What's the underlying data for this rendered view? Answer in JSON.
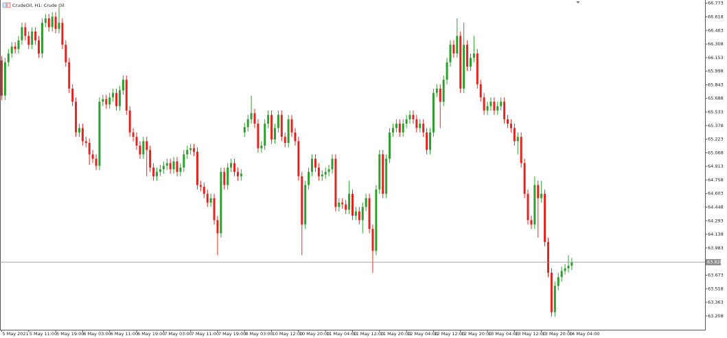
{
  "chart_data": {
    "type": "candlestick",
    "title": "CrudeOil, H1:  Crude Oil",
    "up_color": "#2e9e2e",
    "down_color": "#e3241e",
    "grid": false,
    "xlim": [
      -0.5,
      208.5
    ],
    "ylim": [
      63.05,
      66.81
    ],
    "xticks": [
      {
        "value": 0,
        "label": "5 May 2021"
      },
      {
        "value": 8,
        "label": "5 May 11:00"
      },
      {
        "value": 16,
        "label": "5 May 19:00"
      },
      {
        "value": 24,
        "label": "6 May 03:00"
      },
      {
        "value": 32,
        "label": "6 May 11:00"
      },
      {
        "value": 40,
        "label": "6 May 19:00"
      },
      {
        "value": 48,
        "label": "7 May 03:00"
      },
      {
        "value": 56,
        "label": "7 May 11:00"
      },
      {
        "value": 64,
        "label": "7 May 19:00"
      },
      {
        "value": 72,
        "label": "8 May 03:00"
      },
      {
        "value": 80,
        "label": "10 May 12:00"
      },
      {
        "value": 88,
        "label": "10 May 20:00"
      },
      {
        "value": 96,
        "label": "11 May 04:00"
      },
      {
        "value": 104,
        "label": "11 May 12:00"
      },
      {
        "value": 112,
        "label": "11 May 20:00"
      },
      {
        "value": 120,
        "label": "12 May 04:00"
      },
      {
        "value": 128,
        "label": "12 May 12:00"
      },
      {
        "value": 136,
        "label": "12 May 20:00"
      },
      {
        "value": 144,
        "label": "13 May 04:00"
      },
      {
        "value": 152,
        "label": "13 May 12:00"
      },
      {
        "value": 160,
        "label": "13 May 20:00"
      },
      {
        "value": 168,
        "label": "14 May 04:00"
      }
    ],
    "yticks": [
      66.773,
      66.618,
      66.463,
      66.308,
      66.153,
      65.998,
      65.843,
      65.688,
      65.533,
      65.378,
      65.223,
      65.068,
      64.913,
      64.758,
      64.603,
      64.448,
      64.293,
      64.138,
      63.983,
      63.673,
      63.518,
      63.363,
      63.208
    ],
    "price_line": {
      "value": 63.82,
      "label": "63.820"
    },
    "open": [
      66.12,
      65.72,
      66.1,
      66.2,
      66.28,
      66.25,
      66.35,
      66.5,
      66.4,
      66.3,
      66.45,
      66.35,
      66.2,
      66.55,
      66.6,
      66.5,
      66.62,
      66.48,
      66.55,
      66.3,
      66.1,
      65.8,
      65.65,
      65.3,
      65.35,
      65.2,
      65.18,
      65.05,
      65.0,
      64.92,
      65.65,
      65.68,
      65.62,
      65.7,
      65.75,
      65.6,
      65.78,
      65.9,
      65.55,
      65.3,
      65.25,
      65.15,
      65.05,
      65.2,
      65.1,
      64.9,
      64.8,
      64.85,
      64.88,
      64.92,
      64.95,
      64.88,
      64.97,
      64.85,
      64.9,
      65.05,
      65.1,
      65.12,
      65.08,
      64.7,
      64.68,
      64.6,
      64.5,
      64.55,
      64.3,
      64.15,
      64.85,
      64.7,
      64.9,
      64.95,
      64.85,
      64.8,
      65.3,
      65.36,
      65.45,
      65.52,
      65.4,
      65.12,
      65.15,
      65.4,
      65.5,
      65.22,
      65.35,
      65.5,
      65.25,
      65.18,
      65.45,
      65.3,
      65.2,
      64.8,
      64.25,
      64.7,
      64.85,
      65.0,
      64.9,
      64.8,
      64.82,
      64.85,
      64.88,
      65.0,
      64.45,
      64.5,
      64.48,
      64.42,
      64.6,
      64.35,
      64.4,
      64.3,
      64.45,
      64.55,
      64.2,
      63.95,
      64.65,
      65.05,
      64.6,
      65.0,
      65.3,
      65.35,
      65.4,
      65.3,
      65.4,
      65.45,
      65.5,
      65.45,
      65.35,
      65.4,
      65.3,
      65.1,
      65.3,
      65.75,
      65.8,
      65.65,
      65.9,
      66.1,
      66.3,
      66.2,
      66.4,
      65.8,
      66.3,
      66.05,
      66.15,
      66.2,
      65.85,
      65.7,
      65.55,
      65.6,
      65.65,
      65.55,
      65.6,
      65.65,
      65.45,
      65.4,
      65.35,
      65.2,
      65.25,
      64.95,
      64.6,
      64.3,
      64.25,
      64.7,
      64.55,
      64.6,
      64.05,
      63.7,
      63.25,
      63.55,
      63.65,
      63.72,
      63.75,
      63.78
    ],
    "high": [
      66.17,
      66.15,
      66.25,
      66.33,
      66.33,
      66.4,
      66.55,
      66.55,
      66.45,
      66.5,
      66.5,
      66.4,
      66.6,
      66.65,
      66.65,
      66.67,
      66.67,
      66.73,
      66.6,
      66.35,
      66.15,
      65.85,
      65.7,
      65.4,
      65.4,
      65.25,
      65.23,
      65.1,
      65.05,
      65.7,
      65.73,
      65.73,
      65.75,
      65.8,
      65.8,
      65.83,
      65.95,
      65.95,
      65.6,
      65.35,
      65.3,
      65.2,
      65.25,
      65.25,
      65.15,
      64.95,
      64.9,
      64.93,
      64.97,
      65.0,
      65.0,
      65.02,
      65.02,
      64.95,
      65.1,
      65.15,
      65.17,
      65.17,
      65.13,
      64.75,
      64.73,
      64.65,
      64.6,
      64.6,
      64.35,
      64.9,
      64.9,
      64.95,
      65.0,
      65.0,
      64.9,
      64.88,
      65.41,
      65.5,
      65.72,
      65.57,
      65.45,
      65.2,
      65.45,
      65.55,
      65.55,
      65.4,
      65.55,
      65.55,
      65.3,
      65.5,
      65.5,
      65.35,
      65.25,
      64.85,
      64.75,
      64.9,
      65.05,
      65.05,
      64.95,
      64.87,
      64.9,
      64.93,
      65.05,
      65.05,
      64.55,
      64.55,
      64.53,
      64.75,
      64.65,
      64.45,
      64.45,
      64.5,
      64.6,
      64.6,
      64.25,
      64.7,
      65.1,
      65.1,
      65.05,
      65.35,
      65.4,
      65.45,
      65.45,
      65.45,
      65.5,
      65.55,
      65.55,
      65.5,
      65.45,
      65.45,
      65.35,
      65.35,
      65.8,
      65.85,
      65.85,
      65.95,
      66.15,
      66.35,
      66.35,
      66.6,
      66.45,
      66.55,
      66.35,
      66.2,
      66.4,
      66.25,
      65.9,
      65.75,
      65.65,
      65.7,
      65.7,
      65.65,
      65.7,
      65.7,
      65.5,
      65.45,
      65.4,
      65.3,
      65.3,
      65.0,
      64.65,
      64.35,
      64.8,
      64.75,
      64.75,
      64.65,
      64.1,
      63.75,
      63.6,
      63.7,
      63.77,
      63.8,
      63.9,
      63.87
    ],
    "low": [
      65.67,
      65.67,
      66.05,
      66.15,
      66.2,
      66.2,
      66.3,
      66.35,
      66.25,
      66.25,
      66.3,
      66.15,
      66.15,
      66.5,
      66.45,
      66.45,
      66.43,
      66.43,
      66.25,
      66.05,
      65.75,
      65.6,
      65.25,
      65.25,
      65.15,
      65.13,
      64.93,
      64.95,
      64.87,
      64.87,
      65.6,
      65.57,
      65.57,
      65.65,
      65.55,
      65.55,
      65.73,
      65.5,
      65.25,
      65.2,
      65.1,
      65.0,
      65.0,
      64.8,
      64.85,
      64.75,
      64.75,
      64.8,
      64.83,
      64.87,
      64.83,
      64.83,
      64.8,
      64.8,
      64.85,
      65.0,
      65.05,
      65.03,
      64.65,
      64.63,
      64.55,
      64.45,
      64.45,
      64.25,
      63.9,
      64.1,
      64.65,
      64.65,
      64.85,
      64.8,
      64.75,
      64.75,
      65.25,
      65.31,
      65.4,
      65.35,
      65.07,
      65.07,
      65.1,
      65.35,
      65.17,
      65.17,
      65.3,
      65.2,
      65.13,
      65.13,
      65.25,
      65.15,
      64.75,
      63.9,
      64.2,
      64.65,
      64.8,
      64.85,
      64.75,
      64.75,
      64.77,
      64.8,
      64.83,
      64.4,
      64.4,
      64.43,
      64.37,
      64.37,
      64.3,
      64.3,
      64.25,
      64.15,
      64.4,
      64.15,
      63.7,
      63.9,
      64.6,
      64.55,
      64.55,
      64.95,
      65.25,
      65.3,
      65.25,
      65.25,
      65.35,
      65.4,
      65.4,
      65.3,
      65.3,
      65.25,
      65.05,
      65.05,
      65.25,
      65.7,
      65.35,
      65.6,
      65.85,
      66.05,
      66.15,
      66.15,
      65.75,
      65.75,
      66.0,
      66.0,
      66.1,
      65.8,
      65.65,
      65.5,
      65.5,
      65.55,
      65.5,
      65.5,
      65.55,
      65.4,
      65.35,
      65.3,
      65.15,
      65.05,
      64.9,
      64.55,
      64.25,
      64.2,
      64.2,
      64.1,
      64.5,
      64.0,
      63.65,
      63.2,
      63.2,
      63.5,
      63.6,
      63.68,
      63.7,
      63.73
    ],
    "close": [
      65.72,
      66.1,
      66.2,
      66.28,
      66.25,
      66.35,
      66.5,
      66.4,
      66.3,
      66.45,
      66.35,
      66.2,
      66.55,
      66.6,
      66.5,
      66.62,
      66.48,
      66.55,
      66.3,
      66.1,
      65.8,
      65.65,
      65.3,
      65.35,
      65.2,
      65.18,
      65.05,
      65.0,
      64.92,
      65.65,
      65.68,
      65.62,
      65.7,
      65.75,
      65.6,
      65.78,
      65.9,
      65.55,
      65.3,
      65.25,
      65.15,
      65.05,
      65.2,
      65.1,
      64.9,
      64.8,
      64.85,
      64.88,
      64.92,
      64.95,
      64.88,
      64.97,
      64.85,
      64.9,
      65.05,
      65.1,
      65.12,
      65.08,
      64.7,
      64.68,
      64.6,
      64.5,
      64.55,
      64.3,
      64.15,
      64.85,
      64.7,
      64.9,
      64.95,
      64.85,
      64.8,
      64.83,
      65.36,
      65.45,
      65.52,
      65.4,
      65.12,
      65.15,
      65.4,
      65.5,
      65.22,
      65.35,
      65.5,
      65.25,
      65.18,
      65.45,
      65.3,
      65.2,
      64.8,
      64.25,
      64.7,
      64.85,
      65.0,
      64.9,
      64.8,
      64.82,
      64.85,
      64.88,
      65.0,
      64.45,
      64.5,
      64.48,
      64.42,
      64.6,
      64.35,
      64.4,
      64.3,
      64.45,
      64.55,
      64.2,
      63.95,
      64.65,
      65.05,
      64.6,
      65.0,
      65.3,
      65.35,
      65.4,
      65.3,
      65.4,
      65.45,
      65.5,
      65.45,
      65.35,
      65.4,
      65.3,
      65.1,
      65.3,
      65.75,
      65.8,
      65.65,
      65.9,
      66.1,
      66.3,
      66.2,
      66.4,
      65.8,
      66.3,
      66.05,
      66.15,
      66.2,
      65.85,
      65.7,
      65.55,
      65.6,
      65.65,
      65.55,
      65.6,
      65.65,
      65.45,
      65.4,
      65.35,
      65.2,
      65.25,
      64.95,
      64.6,
      64.3,
      64.25,
      64.7,
      64.55,
      64.6,
      64.05,
      63.7,
      63.25,
      63.55,
      63.65,
      63.72,
      63.75,
      63.78,
      63.82
    ]
  }
}
